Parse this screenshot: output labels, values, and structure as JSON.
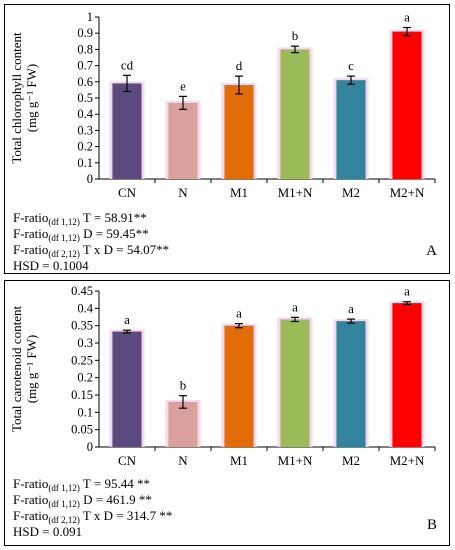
{
  "chart_data": [
    {
      "type": "bar",
      "categories": [
        "CN",
        "N",
        "M1",
        "M1+N",
        "M2",
        "M2+N"
      ],
      "values": [
        0.59,
        0.47,
        0.58,
        0.8,
        0.61,
        0.91
      ],
      "errors": [
        0.05,
        0.04,
        0.055,
        0.02,
        0.025,
        0.025
      ],
      "letters": [
        "cd",
        "e",
        "d",
        "b",
        "c",
        "a"
      ],
      "colors": [
        "#5b4a7d",
        "#d9a09c",
        "#e36c0a",
        "#9bbb59",
        "#31849b",
        "#ff0000"
      ],
      "ylabel_line1": "Total chlorophyll content",
      "ylabel_line2": "(mg g⁻¹ FW)",
      "ylim": [
        0,
        1
      ],
      "yticks": [
        "0",
        "0.1",
        "0.2",
        "0.3",
        "0.4",
        "0.5",
        "0.6",
        "0.7",
        "0.8",
        "0.9",
        "1"
      ],
      "grid": false,
      "stats": [
        {
          "prefix": "F-ratio",
          "sub": "(df 1,12)",
          "text": " T =  58.91**"
        },
        {
          "prefix": "F-ratio",
          "sub": "(df 1,12)",
          "text": " D = 59.45**"
        },
        {
          "prefix": "F-ratio",
          "sub": "(df 2,12)",
          "text": " T x D = 54.07**"
        },
        {
          "prefix": "HSD = 0.1004",
          "sub": "",
          "text": ""
        }
      ],
      "panel_label": "A"
    },
    {
      "type": "bar",
      "categories": [
        "CN",
        "N",
        "M1",
        "M1+N",
        "M2",
        "M2+N"
      ],
      "values": [
        0.333,
        0.13,
        0.35,
        0.368,
        0.363,
        0.415
      ],
      "errors": [
        0.004,
        0.018,
        0.006,
        0.006,
        0.006,
        0.004
      ],
      "letters": [
        "a",
        "b",
        "a",
        "a",
        "a",
        "a"
      ],
      "colors": [
        "#5b4a7d",
        "#d9a09c",
        "#e36c0a",
        "#9bbb59",
        "#31849b",
        "#ff0000"
      ],
      "ylabel_line1": "Total carotenoid content",
      "ylabel_line2": "(mg g⁻¹ FW)",
      "ylim": [
        0,
        0.45
      ],
      "yticks": [
        "0",
        "0.05",
        "0.1",
        "0.15",
        "0.2",
        "0.25",
        "0.3",
        "0.35",
        "0.4",
        "0.45"
      ],
      "grid": false,
      "stats": [
        {
          "prefix": "F-ratio",
          "sub": "(df 1,12)",
          "text": " T =  95.44 **"
        },
        {
          "prefix": "F-ratio",
          "sub": "(df 1,12)",
          "text": " D = 461.9 **"
        },
        {
          "prefix": "F-ratio",
          "sub": "(df 2,12)",
          "text": " T x D = 314.7 **"
        },
        {
          "prefix": "HSD = 0.091",
          "sub": "",
          "text": ""
        }
      ],
      "panel_label": "B"
    }
  ]
}
